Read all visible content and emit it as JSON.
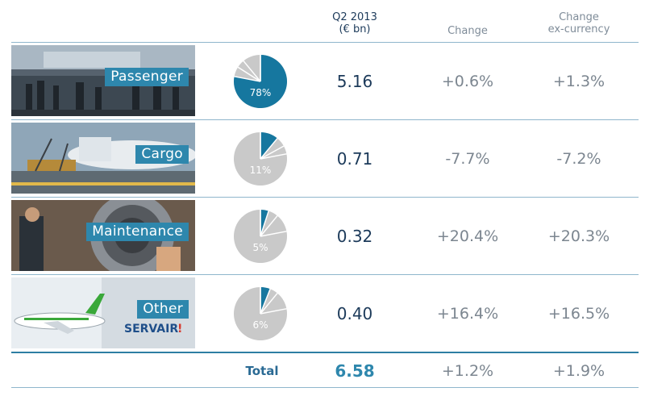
{
  "header": {
    "q2_line1": "Q2 2013",
    "q2_line2": "(€ bn)",
    "change": "Change",
    "change_ex_line1": "Change",
    "change_ex_line2": "ex-currency"
  },
  "rows": [
    {
      "label": "Passenger",
      "share_label": "78%",
      "share": 0.78,
      "value": "5.16",
      "change": "+0.6%",
      "change_ex": "+1.3%"
    },
    {
      "label": "Cargo",
      "share_label": "11%",
      "share": 0.11,
      "value": "0.71",
      "change": "-7.7%",
      "change_ex": "-7.2%"
    },
    {
      "label": "Maintenance",
      "share_label": "5%",
      "share": 0.05,
      "value": "0.32",
      "change": "+20.4%",
      "change_ex": "+20.3%"
    },
    {
      "label": "Other",
      "share_label": "6%",
      "share": 0.06,
      "value": "0.40",
      "change": "+16.4%",
      "change_ex": "+16.5%"
    }
  ],
  "photo_text": {
    "servair": "SERVAIR"
  },
  "total": {
    "label": "Total",
    "value": "6.58",
    "change": "+1.2%",
    "change_ex": "+1.9%"
  },
  "colors": {
    "accent": "#2e87ad",
    "highlight_slice": "#16779f",
    "other_slice": "#c9c9c9",
    "text": "#1c3a5a",
    "muted": "#7c8690"
  }
}
